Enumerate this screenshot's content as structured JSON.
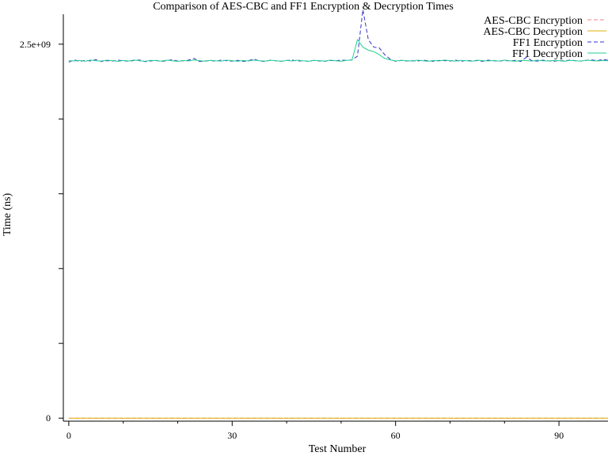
{
  "chart_data": {
    "type": "line",
    "title": "Comparison of AES-CBC and FF1 Encryption & Decryption Times",
    "xlabel": "Test Number",
    "ylabel": "Time (ns)",
    "xlim": [
      -1,
      99
    ],
    "ylim": [
      -20000000,
      2700000000
    ],
    "x_ticks": [
      0,
      30,
      60,
      90
    ],
    "x_tick_labels": [
      "0",
      "30",
      "60",
      "90"
    ],
    "y_ticks": [
      0,
      500000000,
      1000000000,
      1500000000,
      2000000000,
      2500000000
    ],
    "y_tick_labels": [
      "0",
      "",
      "",
      "",
      "",
      "2.5e+09"
    ],
    "grid": false,
    "legend_position": "top-right",
    "x_start": 0,
    "series": [
      {
        "name": "AES-CBC Encryption",
        "color": "#f08080",
        "dash": "dashed",
        "values": [
          150000,
          150000,
          150000,
          150000,
          150000,
          150000,
          150000,
          150000,
          150000,
          150000,
          150000,
          150000,
          150000,
          150000,
          150000,
          150000,
          150000,
          150000,
          150000,
          150000,
          150000,
          150000,
          150000,
          150000,
          150000,
          150000,
          150000,
          150000,
          150000,
          150000,
          150000,
          150000,
          150000,
          150000,
          150000,
          150000,
          150000,
          150000,
          150000,
          150000,
          150000,
          150000,
          150000,
          150000,
          150000,
          150000,
          150000,
          150000,
          150000,
          150000,
          150000,
          150000,
          150000,
          150000,
          150000,
          150000,
          150000,
          150000,
          150000,
          150000,
          150000,
          150000,
          150000,
          150000,
          150000,
          150000,
          150000,
          150000,
          150000,
          150000,
          150000,
          150000,
          150000,
          150000,
          150000,
          150000,
          150000,
          150000,
          150000,
          150000,
          150000,
          150000,
          150000,
          150000,
          150000,
          150000,
          150000,
          150000,
          150000,
          150000,
          150000,
          150000,
          150000,
          150000,
          150000,
          150000,
          150000,
          150000,
          150000,
          150000
        ]
      },
      {
        "name": "AES-CBC Decryption",
        "color": "#e0b000",
        "dash": "solid",
        "values": [
          140000,
          140000,
          140000,
          140000,
          140000,
          140000,
          140000,
          140000,
          140000,
          140000,
          140000,
          140000,
          140000,
          140000,
          140000,
          140000,
          140000,
          140000,
          140000,
          140000,
          140000,
          140000,
          140000,
          140000,
          140000,
          140000,
          140000,
          140000,
          140000,
          140000,
          140000,
          140000,
          140000,
          140000,
          140000,
          140000,
          140000,
          140000,
          140000,
          140000,
          140000,
          140000,
          140000,
          140000,
          140000,
          140000,
          140000,
          140000,
          140000,
          140000,
          140000,
          140000,
          140000,
          140000,
          140000,
          140000,
          140000,
          140000,
          140000,
          140000,
          140000,
          140000,
          140000,
          140000,
          140000,
          140000,
          140000,
          140000,
          140000,
          140000,
          140000,
          140000,
          140000,
          140000,
          140000,
          140000,
          140000,
          140000,
          140000,
          140000,
          140000,
          140000,
          140000,
          140000,
          140000,
          140000,
          140000,
          140000,
          140000,
          140000,
          140000,
          140000,
          140000,
          140000,
          140000,
          140000,
          140000,
          140000,
          140000,
          140000
        ]
      },
      {
        "name": "FF1 Encryption",
        "color": "#3030c8",
        "dash": "dashed",
        "values": [
          2380000000,
          2395000000,
          2385000000,
          2392000000,
          2388000000,
          2396000000,
          2384000000,
          2390000000,
          2387000000,
          2393000000,
          2389000000,
          2386000000,
          2391000000,
          2394000000,
          2383000000,
          2388000000,
          2392000000,
          2385000000,
          2390000000,
          2396000000,
          2387000000,
          2389000000,
          2393000000,
          2405000000,
          2384000000,
          2388000000,
          2391000000,
          2386000000,
          2394000000,
          2389000000,
          2387000000,
          2392000000,
          2385000000,
          2390000000,
          2400000000,
          2388000000,
          2384000000,
          2393000000,
          2389000000,
          2386000000,
          2391000000,
          2394000000,
          2387000000,
          2390000000,
          2385000000,
          2392000000,
          2388000000,
          2386000000,
          2391000000,
          2389000000,
          2393000000,
          2392000000,
          2395000000,
          2420000000,
          2730000000,
          2530000000,
          2480000000,
          2475000000,
          2430000000,
          2400000000,
          2385000000,
          2392000000,
          2388000000,
          2390000000,
          2387000000,
          2393000000,
          2389000000,
          2386000000,
          2391000000,
          2390000000,
          2387000000,
          2394000000,
          2385000000,
          2392000000,
          2388000000,
          2390000000,
          2386000000,
          2393000000,
          2389000000,
          2387000000,
          2391000000,
          2388000000,
          2392000000,
          2385000000,
          2412000000,
          2390000000,
          2387000000,
          2393000000,
          2389000000,
          2386000000,
          2391000000,
          2388000000,
          2394000000,
          2390000000,
          2387000000,
          2392000000,
          2395000000,
          2389000000,
          2398000000,
          2393000000
        ]
      },
      {
        "name": "FF1 Decryption",
        "color": "#20d090",
        "dash": "solid",
        "values": [
          2390000000,
          2388000000,
          2392000000,
          2386000000,
          2394000000,
          2389000000,
          2387000000,
          2393000000,
          2390000000,
          2385000000,
          2391000000,
          2388000000,
          2394000000,
          2389000000,
          2386000000,
          2392000000,
          2390000000,
          2387000000,
          2393000000,
          2389000000,
          2385000000,
          2391000000,
          2388000000,
          2395000000,
          2390000000,
          2386000000,
          2392000000,
          2389000000,
          2387000000,
          2393000000,
          2390000000,
          2386000000,
          2391000000,
          2388000000,
          2394000000,
          2389000000,
          2387000000,
          2392000000,
          2390000000,
          2385000000,
          2391000000,
          2388000000,
          2393000000,
          2389000000,
          2386000000,
          2392000000,
          2390000000,
          2387000000,
          2393000000,
          2389000000,
          2386000000,
          2392000000,
          2394000000,
          2530000000,
          2480000000,
          2460000000,
          2450000000,
          2430000000,
          2405000000,
          2395000000,
          2388000000,
          2392000000,
          2390000000,
          2387000000,
          2393000000,
          2389000000,
          2386000000,
          2391000000,
          2388000000,
          2394000000,
          2390000000,
          2387000000,
          2392000000,
          2389000000,
          2386000000,
          2393000000,
          2390000000,
          2388000000,
          2391000000,
          2387000000,
          2394000000,
          2389000000,
          2386000000,
          2392000000,
          2390000000,
          2387000000,
          2393000000,
          2389000000,
          2388000000,
          2391000000,
          2390000000,
          2386000000,
          2392000000,
          2389000000,
          2387000000,
          2393000000,
          2390000000,
          2388000000,
          2391000000,
          2389000000
        ]
      }
    ]
  }
}
